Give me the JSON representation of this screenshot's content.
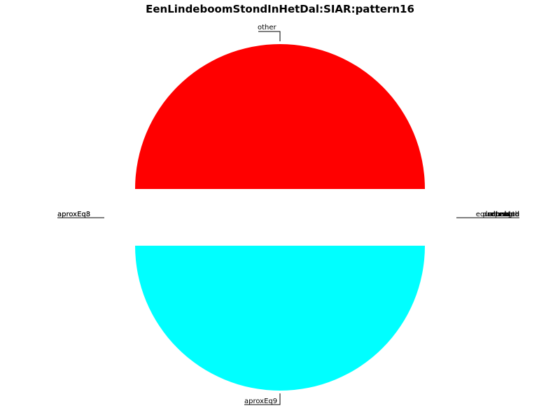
{
  "chart_data": {
    "type": "pie",
    "title": "EenLindeboomStondInHetDal:SIAR:pattern16",
    "slices": [
      {
        "label": "other",
        "value": 50,
        "color": "#ff0000"
      },
      {
        "label": "aproxEq9",
        "value": 50,
        "color": "#00ffff"
      }
    ],
    "small_labels_left": [
      "aproxEq8",
      "aproxEq3"
    ],
    "small_labels_right": [
      "equalLength",
      "repeated",
      "unique",
      "decreased",
      "increased",
      "halved",
      "doubled"
    ],
    "legend": "none"
  }
}
